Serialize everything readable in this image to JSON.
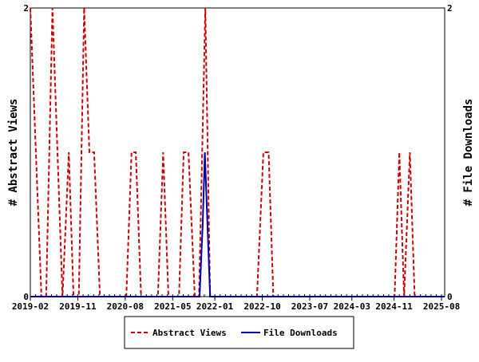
{
  "chart_data": {
    "type": "line",
    "title": "",
    "xlabel": "",
    "ylabel": "# Abstract Views",
    "y2label": "# File Downloads",
    "xlim": [
      "2019-02-01",
      "2025-08-19"
    ],
    "ylim": [
      0,
      2
    ],
    "y2lim": [
      0,
      2
    ],
    "y_ticks": [
      "0",
      "2"
    ],
    "y2_ticks": [
      "0",
      "2"
    ],
    "x_ticks": [
      "2019-02",
      "2019-11",
      "2020-08",
      "2021-05",
      "2022-01",
      "2022-10",
      "2023-07",
      "2024-03",
      "2024-11",
      "2025-08"
    ],
    "grid": false,
    "legend_position": "bottom",
    "series": [
      {
        "name": "Abstract Views",
        "color": "#cc0000",
        "style": "dashed",
        "axis": "left",
        "points": [
          [
            "2019-02-01",
            2
          ],
          [
            "2019-04-04",
            0
          ],
          [
            "2019-05-01",
            0
          ],
          [
            "2019-06-07",
            2
          ],
          [
            "2019-08-04",
            0
          ],
          [
            "2019-09-10",
            1
          ],
          [
            "2019-10-07",
            0
          ],
          [
            "2019-11-07",
            0
          ],
          [
            "2019-12-07",
            2
          ],
          [
            "2020-01-07",
            1
          ],
          [
            "2020-02-04",
            1
          ],
          [
            "2020-03-07",
            0
          ],
          [
            "2020-08-07",
            0
          ],
          [
            "2020-09-07",
            1
          ],
          [
            "2020-10-01",
            1
          ],
          [
            "2020-11-01",
            0
          ],
          [
            "2021-02-07",
            0
          ],
          [
            "2021-03-07",
            1
          ],
          [
            "2021-04-07",
            0
          ],
          [
            "2021-06-07",
            0
          ],
          [
            "2021-07-04",
            1
          ],
          [
            "2021-08-01",
            1
          ],
          [
            "2021-09-07",
            0
          ],
          [
            "2021-10-01",
            0
          ],
          [
            "2021-11-07",
            2
          ],
          [
            "2021-12-04",
            0
          ],
          [
            "2022-09-01",
            0
          ],
          [
            "2022-10-07",
            1
          ],
          [
            "2022-11-07",
            1
          ],
          [
            "2022-12-04",
            0
          ],
          [
            "2024-11-04",
            0
          ],
          [
            "2024-12-01",
            1
          ],
          [
            "2024-12-28",
            0
          ],
          [
            "2025-02-01",
            1
          ],
          [
            "2025-02-28",
            0
          ],
          [
            "2025-08-19",
            0
          ]
        ]
      },
      {
        "name": "File Downloads",
        "color": "#0000aa",
        "style": "solid",
        "axis": "right",
        "points": [
          [
            "2019-02-01",
            0
          ],
          [
            "2021-10-04",
            0
          ],
          [
            "2021-10-22",
            0.5
          ],
          [
            "2021-11-04",
            1
          ],
          [
            "2021-11-10",
            0.8
          ],
          [
            "2021-11-16",
            0.6
          ],
          [
            "2021-12-04",
            0
          ],
          [
            "2025-08-19",
            0
          ]
        ]
      }
    ]
  }
}
